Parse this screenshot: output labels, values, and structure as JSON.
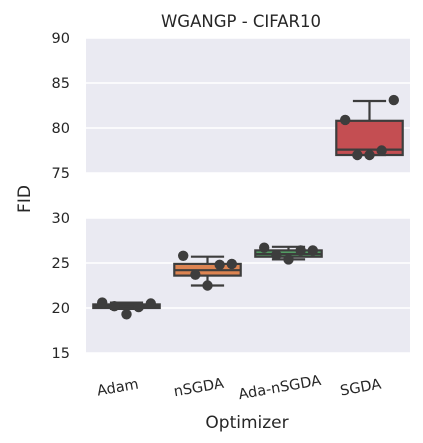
{
  "chart_data": {
    "type": "box",
    "title": "WGANGP - CIFAR10",
    "xlabel": "Optimizer",
    "ylabel": "FID",
    "broken_axis": true,
    "grid": true,
    "upper_panel": {
      "ylim": [
        75,
        90
      ],
      "yticks": [
        "75",
        "80",
        "85",
        "90"
      ]
    },
    "lower_panel": {
      "ylim": [
        15,
        30
      ],
      "yticks": [
        "15",
        "20",
        "25",
        "30"
      ]
    },
    "categories": [
      "Adam",
      "nSGDA",
      "Ada-nSGDA",
      "SGDA"
    ],
    "series": [
      {
        "category": "Adam",
        "color": "#4c72b0",
        "box": {
          "whisker_low": 19.9,
          "q1": 20.0,
          "median": 20.2,
          "q3": 20.4,
          "whisker_high": 20.6
        },
        "points": [
          20.6,
          20.2,
          19.3,
          20.1,
          20.5
        ]
      },
      {
        "category": "nSGDA",
        "color": "#dd8452",
        "box": {
          "whisker_low": 22.5,
          "q1": 23.6,
          "median": 24.2,
          "q3": 24.9,
          "whisker_high": 25.7
        },
        "points": [
          25.8,
          23.7,
          22.5,
          24.8,
          24.9
        ]
      },
      {
        "category": "Ada-nSGDA",
        "color": "#55a868",
        "box": {
          "whisker_low": 25.4,
          "q1": 25.7,
          "median": 26.0,
          "q3": 26.4,
          "whisker_high": 26.8
        },
        "points": [
          26.7,
          25.9,
          25.4,
          26.4,
          26.4
        ]
      },
      {
        "category": "SGDA",
        "color": "#c44e52",
        "box": {
          "whisker_low": 77.0,
          "q1": 77.0,
          "median": 77.6,
          "q3": 80.8,
          "whisker_high": 83.0
        },
        "points": [
          80.9,
          77.0,
          77.0,
          77.5,
          83.1
        ]
      }
    ]
  }
}
